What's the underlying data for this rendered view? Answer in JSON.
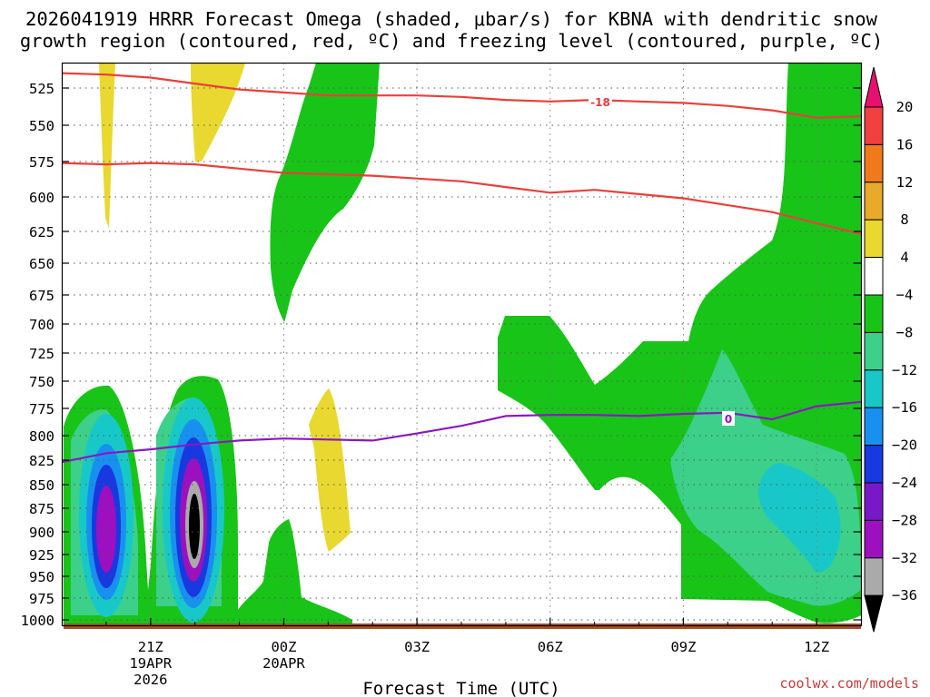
{
  "chart_data": {
    "type": "contour",
    "title_line1": "2026041919 HRRR Forecast Omega (shaded, μbar/s) for KBNA with dendritic snow",
    "title_line2": "growth region (contoured, red, ºC) and freezing level (contoured, purple, ºC)",
    "xlabel": "Forecast Time (UTC)",
    "credit": "coolwx.com/models",
    "y_ticks": [
      525,
      550,
      575,
      600,
      625,
      650,
      675,
      700,
      725,
      750,
      775,
      800,
      825,
      850,
      875,
      900,
      925,
      950,
      975,
      1000
    ],
    "x_ticks": [
      {
        "hour": 21,
        "label": "21Z",
        "sub1": "19APR",
        "sub2": "2026"
      },
      {
        "hour": 24,
        "label": "00Z",
        "sub1": "20APR",
        "sub2": ""
      },
      {
        "hour": 27,
        "label": "03Z",
        "sub1": "",
        "sub2": ""
      },
      {
        "hour": 30,
        "label": "06Z",
        "sub1": "",
        "sub2": ""
      },
      {
        "hour": 33,
        "label": "09Z",
        "sub1": "",
        "sub2": ""
      },
      {
        "hour": 36,
        "label": "12Z",
        "sub1": "",
        "sub2": ""
      }
    ],
    "x_range": [
      19,
      37
    ],
    "colorbar": {
      "ticks": [
        "20",
        "16",
        "12",
        "8",
        "4",
        "−4",
        "−8",
        "−12",
        "−16",
        "−20",
        "−24",
        "−28",
        "−32",
        "−36"
      ],
      "colors": [
        "#e8106e",
        "#f04040",
        "#f07a1a",
        "#e8aa28",
        "#e8d830",
        "#ffffff",
        "#18c418",
        "#3cd08a",
        "#18c8c8",
        "#1890f0",
        "#1838e0",
        "#7818c8",
        "#9c10c0",
        "#aaaaaa",
        "#000000"
      ]
    },
    "contour_labels": [
      {
        "label": "-18",
        "color": "#e03c3c"
      },
      {
        "label": "0",
        "color": "#8a18c0"
      }
    ],
    "series": [
      {
        "name": "dgz_upper",
        "color": "#e8403c",
        "x": [
          19,
          20,
          21,
          22,
          23,
          24,
          25,
          26,
          27,
          28,
          29,
          30,
          31,
          32,
          33,
          34,
          35,
          36,
          37
        ],
        "y": [
          515,
          516,
          518,
          522,
          526,
          528,
          530,
          530,
          530,
          531,
          533,
          534,
          533,
          534,
          535,
          537,
          540,
          545,
          544
        ]
      },
      {
        "name": "dgz_lower",
        "color": "#e8403c",
        "x": [
          19,
          20,
          21,
          22,
          23,
          24,
          25,
          26,
          27,
          28,
          29,
          30,
          31,
          32,
          33,
          34,
          35,
          36,
          37
        ],
        "y": [
          576,
          577,
          576,
          577,
          580,
          583,
          584,
          585,
          587,
          589,
          593,
          597,
          595,
          598,
          601,
          606,
          611,
          619,
          627
        ]
      },
      {
        "name": "freezing_level",
        "color": "#8a18c0",
        "x": [
          19,
          20,
          21,
          22,
          23,
          24,
          25,
          26,
          27,
          28,
          29,
          30,
          31,
          32,
          33,
          34,
          35,
          36,
          37
        ],
        "y": [
          827,
          818,
          814,
          809,
          805,
          803,
          804,
          805,
          798,
          791,
          782,
          781,
          781,
          782,
          780,
          779,
          785,
          773,
          769
        ]
      }
    ]
  }
}
